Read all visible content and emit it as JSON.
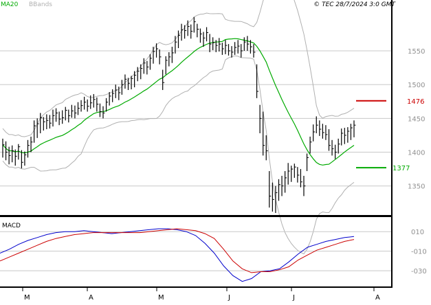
{
  "header": {
    "legend_ma20": "MA20",
    "legend_bbands": "BBands",
    "copyright": "© TEC 28/7/2024 3:0 GMT"
  },
  "colors": {
    "price": "#000000",
    "ma20": "#00aa00",
    "bbands": "#b0b0b0",
    "resistance": "#cc0000",
    "support": "#00aa00",
    "macd_line": "#0000cc",
    "signal_line": "#cc0000",
    "grid": "#c8c8c8",
    "axis_text": "#909090"
  },
  "levels": {
    "resistance": {
      "value": 1476,
      "label": "1476"
    },
    "support": {
      "value": 1377,
      "label": "1377"
    }
  },
  "chart_data": [
    {
      "type": "ohlc",
      "title": "",
      "x": [
        "M",
        "A",
        "M",
        "J",
        "J",
        "A"
      ],
      "y_ticks": [
        "1550",
        "1500",
        "1450",
        "1400",
        "1350"
      ],
      "ylim": [
        1308,
        1612
      ],
      "grid": true,
      "legend": "top-left",
      "series": [
        {
          "name": "price",
          "values": [
            [
              1420,
              1392,
              1411
            ],
            [
              1416,
              1388,
              1400
            ],
            [
              1408,
              1382,
              1395
            ],
            [
              1410,
              1385,
              1402
            ],
            [
              1404,
              1380,
              1394
            ],
            [
              1412,
              1389,
              1408
            ],
            [
              1403,
              1376,
              1385
            ],
            [
              1401,
              1380,
              1396
            ],
            [
              1418,
              1392,
              1410
            ],
            [
              1423,
              1400,
              1415
            ],
            [
              1447,
              1414,
              1439
            ],
            [
              1450,
              1421,
              1442
            ],
            [
              1458,
              1428,
              1451
            ],
            [
              1452,
              1432,
              1445
            ],
            [
              1456,
              1434,
              1447
            ],
            [
              1455,
              1435,
              1443
            ],
            [
              1463,
              1438,
              1454
            ],
            [
              1465,
              1445,
              1458
            ],
            [
              1460,
              1440,
              1449
            ],
            [
              1462,
              1442,
              1451
            ],
            [
              1467,
              1447,
              1462
            ],
            [
              1463,
              1444,
              1454
            ],
            [
              1470,
              1451,
              1461
            ],
            [
              1469,
              1450,
              1458
            ],
            [
              1474,
              1455,
              1465
            ],
            [
              1477,
              1460,
              1469
            ],
            [
              1482,
              1463,
              1474
            ],
            [
              1478,
              1460,
              1468
            ],
            [
              1484,
              1464,
              1473
            ],
            [
              1486,
              1466,
              1478
            ],
            [
              1481,
              1460,
              1471
            ],
            [
              1472,
              1452,
              1460
            ],
            [
              1468,
              1450,
              1458
            ],
            [
              1480,
              1460,
              1474
            ],
            [
              1489,
              1469,
              1483
            ],
            [
              1493,
              1474,
              1487
            ],
            [
              1500,
              1480,
              1492
            ],
            [
              1497,
              1477,
              1488
            ],
            [
              1507,
              1485,
              1500
            ],
            [
              1515,
              1494,
              1508
            ],
            [
              1510,
              1492,
              1502
            ],
            [
              1513,
              1493,
              1509
            ],
            [
              1520,
              1496,
              1514
            ],
            [
              1526,
              1505,
              1520
            ],
            [
              1530,
              1508,
              1524
            ],
            [
              1539,
              1516,
              1532
            ],
            [
              1535,
              1515,
              1526
            ],
            [
              1545,
              1522,
              1539
            ],
            [
              1556,
              1531,
              1549
            ],
            [
              1561,
              1540,
              1553
            ],
            [
              1552,
              1530,
              1541
            ],
            [
              1522,
              1492,
              1503
            ],
            [
              1542,
              1515,
              1536
            ],
            [
              1548,
              1527,
              1541
            ],
            [
              1556,
              1532,
              1547
            ],
            [
              1572,
              1546,
              1563
            ],
            [
              1580,
              1554,
              1573
            ],
            [
              1590,
              1565,
              1581
            ],
            [
              1588,
              1568,
              1580
            ],
            [
              1595,
              1572,
              1586
            ],
            [
              1589,
              1568,
              1579
            ],
            [
              1600,
              1577,
              1593
            ],
            [
              1590,
              1570,
              1582
            ],
            [
              1583,
              1562,
              1575
            ],
            [
              1578,
              1556,
              1569
            ],
            [
              1585,
              1564,
              1577
            ],
            [
              1575,
              1548,
              1560
            ],
            [
              1570,
              1551,
              1562
            ],
            [
              1566,
              1548,
              1558
            ],
            [
              1569,
              1549,
              1560
            ],
            [
              1562,
              1544,
              1553
            ],
            [
              1566,
              1545,
              1558
            ],
            [
              1560,
              1543,
              1550
            ],
            [
              1557,
              1540,
              1548
            ],
            [
              1563,
              1544,
              1555
            ],
            [
              1566,
              1546,
              1557
            ],
            [
              1560,
              1540,
              1550
            ],
            [
              1570,
              1550,
              1563
            ],
            [
              1572,
              1550,
              1560
            ],
            [
              1566,
              1546,
              1556
            ],
            [
              1560,
              1540,
              1548
            ],
            [
              1530,
              1480,
              1490
            ],
            [
              1470,
              1428,
              1450
            ],
            [
              1460,
              1395,
              1410
            ],
            [
              1425,
              1388,
              1402
            ],
            [
              1372,
              1318,
              1335
            ],
            [
              1355,
              1312,
              1330
            ],
            [
              1350,
              1310,
              1340
            ],
            [
              1360,
              1328,
              1352
            ],
            [
              1365,
              1335,
              1350
            ],
            [
              1372,
              1340,
              1362
            ],
            [
              1384,
              1352,
              1372
            ],
            [
              1380,
              1356,
              1375
            ],
            [
              1383,
              1362,
              1378
            ],
            [
              1378,
              1355,
              1366
            ],
            [
              1375,
              1348,
              1356
            ],
            [
              1365,
              1335,
              1350
            ],
            [
              1398,
              1372,
              1392
            ],
            [
              1423,
              1398,
              1415
            ],
            [
              1441,
              1416,
              1430
            ],
            [
              1453,
              1428,
              1440
            ],
            [
              1447,
              1424,
              1434
            ],
            [
              1442,
              1420,
              1429
            ],
            [
              1440,
              1418,
              1426
            ],
            [
              1434,
              1402,
              1410
            ],
            [
              1418,
              1395,
              1405
            ],
            [
              1411,
              1390,
              1400
            ],
            [
              1420,
              1398,
              1412
            ],
            [
              1435,
              1410,
              1428
            ],
            [
              1436,
              1412,
              1425
            ],
            [
              1437,
              1414,
              1431
            ],
            [
              1442,
              1418,
              1436
            ],
            [
              1447,
              1422,
              1440
            ]
          ]
        },
        {
          "name": "MA20"
        },
        {
          "name": "BBands"
        }
      ]
    },
    {
      "type": "line",
      "title": "MACD",
      "y_ticks": [
        "010",
        "-010",
        "-030"
      ],
      "ylim": [
        -44,
        20
      ],
      "series": [
        {
          "name": "MACD",
          "values": [
            -12,
            -8,
            -3,
            1,
            4,
            7,
            9,
            10,
            10,
            11,
            10,
            9,
            8,
            9,
            10,
            11,
            12,
            13,
            13,
            12,
            10,
            6,
            -2,
            -12,
            -25,
            -35,
            -41,
            -38,
            -31,
            -30,
            -28,
            -21,
            -13,
            -6,
            -3,
            0,
            2,
            4,
            5
          ]
        },
        {
          "name": "Signal",
          "values": [
            -20,
            -16,
            -12,
            -8,
            -4,
            0,
            3,
            5,
            7,
            8,
            9,
            9,
            9,
            9,
            9,
            9,
            10,
            11,
            12,
            13,
            12,
            11,
            8,
            3,
            -8,
            -20,
            -28,
            -32,
            -31,
            -31,
            -29,
            -26,
            -19,
            -14,
            -9,
            -6,
            -3,
            0,
            2
          ]
        }
      ]
    }
  ]
}
